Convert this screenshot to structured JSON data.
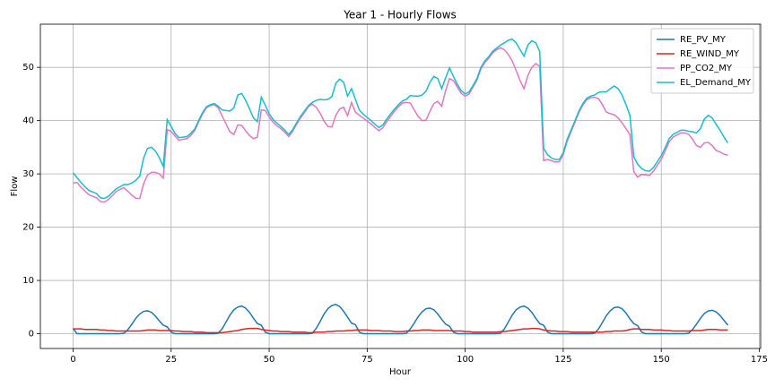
{
  "chart_data": {
    "type": "line",
    "title": "Year 1 - Hourly Flows",
    "xlabel": "Hour",
    "ylabel": "Flow",
    "x": [
      0,
      1,
      2,
      3,
      4,
      5,
      6,
      7,
      8,
      9,
      10,
      11,
      12,
      13,
      14,
      15,
      16,
      17,
      18,
      19,
      20,
      21,
      22,
      23,
      24,
      25,
      26,
      27,
      28,
      29,
      30,
      31,
      32,
      33,
      34,
      35,
      36,
      37,
      38,
      39,
      40,
      41,
      42,
      43,
      44,
      45,
      46,
      47,
      48,
      49,
      50,
      51,
      52,
      53,
      54,
      55,
      56,
      57,
      58,
      59,
      60,
      61,
      62,
      63,
      64,
      65,
      66,
      67,
      68,
      69,
      70,
      71,
      72,
      73,
      74,
      75,
      76,
      77,
      78,
      79,
      80,
      81,
      82,
      83,
      84,
      85,
      86,
      87,
      88,
      89,
      90,
      91,
      92,
      93,
      94,
      95,
      96,
      97,
      98,
      99,
      100,
      101,
      102,
      103,
      104,
      105,
      106,
      107,
      108,
      109,
      110,
      111,
      112,
      113,
      114,
      115,
      116,
      117,
      118,
      119,
      120,
      121,
      122,
      123,
      124,
      125,
      126,
      127,
      128,
      129,
      130,
      131,
      132,
      133,
      134,
      135,
      136,
      137,
      138,
      139,
      140,
      141,
      142,
      143,
      144,
      145,
      146,
      147,
      148,
      149,
      150,
      151,
      152,
      153,
      154,
      155,
      156,
      157,
      158,
      159,
      160,
      161,
      162,
      163,
      164,
      165,
      166,
      167
    ],
    "series": [
      {
        "name": "RE_PV_MY",
        "color": "#1f77b4",
        "values": [
          1.0,
          0,
          0,
          0,
          0,
          0,
          0,
          0,
          0,
          0,
          0,
          0,
          0,
          0.1,
          0.8,
          1.8,
          2.9,
          3.7,
          4.2,
          4.3,
          4.0,
          3.3,
          2.4,
          1.6,
          1.3,
          0.3,
          0,
          0,
          0,
          0,
          0,
          0,
          0,
          0,
          0,
          0,
          0,
          0.1,
          0.9,
          2.2,
          3.5,
          4.5,
          5.0,
          5.2,
          4.8,
          4.0,
          2.9,
          1.9,
          1.6,
          0.3,
          0,
          0,
          0,
          0,
          0,
          0,
          0,
          0,
          0,
          0,
          0,
          0.1,
          1.0,
          2.3,
          3.7,
          4.7,
          5.3,
          5.5,
          5.1,
          4.2,
          3.1,
          2.0,
          1.7,
          0.3,
          0,
          0,
          0,
          0,
          0,
          0,
          0,
          0,
          0,
          0,
          0,
          0.1,
          0.9,
          2.0,
          3.2,
          4.1,
          4.7,
          4.8,
          4.5,
          3.7,
          2.7,
          1.8,
          1.4,
          0.3,
          0,
          0,
          0,
          0,
          0,
          0,
          0,
          0,
          0,
          0,
          0,
          0.1,
          0.9,
          2.2,
          3.5,
          4.5,
          5.0,
          5.2,
          4.8,
          4.0,
          2.9,
          1.9,
          1.6,
          0.3,
          0,
          0,
          0,
          0,
          0,
          0,
          0,
          0,
          0,
          0,
          0,
          0.1,
          0.9,
          2.1,
          3.4,
          4.3,
          4.9,
          5.0,
          4.7,
          3.9,
          2.8,
          1.9,
          1.5,
          0.3,
          0,
          0,
          0,
          0,
          0,
          0,
          0,
          0,
          0,
          0,
          0,
          0.1,
          0.8,
          1.8,
          2.9,
          3.8,
          4.3,
          4.4,
          4.1,
          3.4,
          2.5,
          1.6
        ]
      },
      {
        "name": "RE_WIND_MY",
        "color": "#d62728",
        "values": [
          0.9,
          0.9,
          0.9,
          0.8,
          0.8,
          0.8,
          0.8,
          0.7,
          0.7,
          0.6,
          0.6,
          0.5,
          0.5,
          0.5,
          0.5,
          0.5,
          0.5,
          0.5,
          0.6,
          0.7,
          0.7,
          0.7,
          0.6,
          0.6,
          0.6,
          0.6,
          0.5,
          0.5,
          0.4,
          0.4,
          0.4,
          0.3,
          0.3,
          0.3,
          0.2,
          0.2,
          0.2,
          0.2,
          0.2,
          0.3,
          0.4,
          0.5,
          0.6,
          0.8,
          0.9,
          1.0,
          1.0,
          1.0,
          0.8,
          0.7,
          0.6,
          0.5,
          0.5,
          0.4,
          0.4,
          0.4,
          0.3,
          0.3,
          0.3,
          0.3,
          0.2,
          0.2,
          0.3,
          0.3,
          0.3,
          0.4,
          0.4,
          0.5,
          0.5,
          0.5,
          0.6,
          0.6,
          0.7,
          0.7,
          0.7,
          0.7,
          0.6,
          0.6,
          0.6,
          0.5,
          0.5,
          0.5,
          0.4,
          0.4,
          0.4,
          0.5,
          0.5,
          0.6,
          0.6,
          0.7,
          0.7,
          0.7,
          0.6,
          0.6,
          0.6,
          0.6,
          0.6,
          0.5,
          0.5,
          0.5,
          0.4,
          0.4,
          0.3,
          0.3,
          0.3,
          0.3,
          0.3,
          0.3,
          0.3,
          0.4,
          0.4,
          0.5,
          0.6,
          0.7,
          0.8,
          0.9,
          0.9,
          1.0,
          1.0,
          0.9,
          0.7,
          0.6,
          0.5,
          0.5,
          0.4,
          0.4,
          0.4,
          0.3,
          0.3,
          0.3,
          0.3,
          0.3,
          0.3,
          0.3,
          0.3,
          0.3,
          0.4,
          0.4,
          0.5,
          0.5,
          0.5,
          0.6,
          0.8,
          0.9,
          0.9,
          0.8,
          0.8,
          0.8,
          0.7,
          0.7,
          0.7,
          0.6,
          0.6,
          0.5,
          0.5,
          0.5,
          0.5,
          0.5,
          0.6,
          0.6,
          0.6,
          0.7,
          0.8,
          0.8,
          0.8,
          0.7,
          0.7,
          0.7
        ]
      },
      {
        "name": "PP_CO2_MY",
        "color": "#e377c2",
        "values": [
          28.3,
          28.4,
          27.5,
          26.8,
          26.1,
          25.8,
          25.5,
          24.8,
          24.7,
          25.2,
          25.9,
          26.7,
          27.1,
          27.4,
          26.7,
          26.0,
          25.4,
          25.4,
          28.2,
          29.8,
          30.3,
          30.3,
          30.0,
          29.2,
          38.3,
          38.0,
          37.1,
          36.3,
          36.5,
          36.6,
          37.2,
          38.1,
          39.7,
          41.2,
          42.4,
          42.8,
          43.0,
          42.4,
          40.9,
          39.4,
          37.9,
          37.4,
          39.2,
          39.1,
          38.1,
          37.2,
          36.6,
          36.9,
          42.0,
          41.9,
          40.7,
          39.7,
          39.0,
          38.5,
          37.8,
          37.0,
          38.0,
          39.3,
          40.5,
          41.5,
          42.6,
          43.1,
          42.5,
          41.4,
          39.9,
          38.9,
          38.8,
          41.0,
          42.2,
          42.5,
          40.9,
          43.4,
          41.6,
          41.0,
          40.5,
          39.9,
          39.4,
          38.7,
          38.1,
          38.7,
          39.8,
          40.8,
          41.8,
          42.6,
          43.3,
          43.4,
          43.3,
          42.0,
          40.8,
          40.0,
          40.1,
          41.7,
          43.2,
          43.6,
          42.7,
          45.6,
          47.9,
          47.5,
          46.3,
          45.1,
          44.6,
          45.0,
          46.3,
          47.6,
          49.7,
          50.9,
          51.7,
          52.7,
          53.3,
          53.7,
          53.3,
          52.4,
          51.2,
          49.4,
          47.5,
          46.0,
          48.5,
          50.0,
          50.7,
          50.2,
          32.5,
          32.7,
          32.5,
          32.2,
          32.3,
          33.6,
          36.1,
          37.9,
          39.7,
          41.5,
          42.9,
          43.9,
          44.3,
          44.4,
          44.1,
          43.0,
          41.6,
          41.3,
          41.1,
          40.5,
          39.6,
          38.5,
          37.4,
          30.4,
          29.4,
          29.9,
          29.8,
          29.7,
          30.5,
          31.6,
          32.7,
          34.3,
          36.0,
          36.9,
          37.3,
          37.7,
          37.7,
          37.4,
          36.5,
          35.3,
          35.0,
          35.8,
          35.9,
          35.3,
          34.4,
          34.1,
          33.7,
          33.5
        ]
      },
      {
        "name": "EL_Demand_MY",
        "color": "#17becf",
        "values": [
          30.2,
          29.3,
          28.4,
          27.6,
          26.9,
          26.6,
          26.3,
          25.5,
          25.4,
          25.8,
          26.5,
          27.2,
          27.6,
          28.0,
          28.0,
          28.3,
          28.8,
          29.6,
          33.0,
          34.8,
          35.0,
          34.3,
          33.0,
          31.4,
          40.2,
          38.9,
          37.6,
          36.8,
          36.9,
          37.0,
          37.6,
          38.4,
          40.0,
          41.5,
          42.6,
          43.0,
          43.2,
          42.7,
          42.0,
          41.9,
          41.8,
          42.4,
          44.8,
          45.1,
          43.8,
          42.2,
          40.5,
          39.8,
          44.4,
          42.9,
          41.3,
          40.2,
          39.5,
          38.9,
          38.2,
          37.4,
          38.3,
          39.6,
          40.8,
          41.8,
          42.8,
          43.4,
          43.8,
          44.0,
          43.9,
          44.0,
          44.5,
          47.0,
          47.8,
          47.2,
          44.6,
          46.0,
          44.0,
          42.0,
          41.2,
          40.6,
          40.0,
          39.3,
          38.7,
          39.2,
          40.3,
          41.3,
          42.2,
          43.0,
          43.7,
          44.0,
          44.7,
          44.6,
          44.6,
          44.8,
          45.5,
          47.2,
          48.3,
          47.9,
          46.0,
          48.0,
          49.9,
          48.3,
          46.8,
          45.6,
          45.0,
          45.4,
          46.6,
          47.9,
          50.0,
          51.2,
          52.0,
          53.0,
          53.6,
          54.2,
          54.6,
          55.1,
          55.3,
          54.6,
          53.3,
          52.1,
          54.2,
          55.0,
          54.6,
          53.0,
          34.8,
          33.6,
          33.0,
          32.7,
          32.7,
          34.0,
          36.5,
          38.2,
          40.0,
          41.8,
          43.2,
          44.2,
          44.6,
          44.8,
          45.3,
          45.4,
          45.4,
          46.0,
          46.5,
          46.0,
          44.8,
          43.0,
          41.0,
          33.2,
          31.8,
          31.0,
          30.6,
          30.5,
          31.2,
          32.3,
          33.4,
          34.9,
          36.6,
          37.4,
          37.8,
          38.2,
          38.2,
          38.0,
          37.9,
          37.7,
          38.5,
          40.3,
          41.0,
          40.5,
          39.3,
          38.2,
          36.9,
          35.8
        ]
      }
    ],
    "xlim": [
      -8.35,
      175.35
    ],
    "ylim": [
      -2.77,
      58.1
    ],
    "xticks": [
      0,
      25,
      50,
      75,
      100,
      125,
      150,
      175
    ],
    "yticks": [
      0,
      10,
      20,
      30,
      40,
      50
    ],
    "grid": true,
    "legend": "upper right"
  }
}
